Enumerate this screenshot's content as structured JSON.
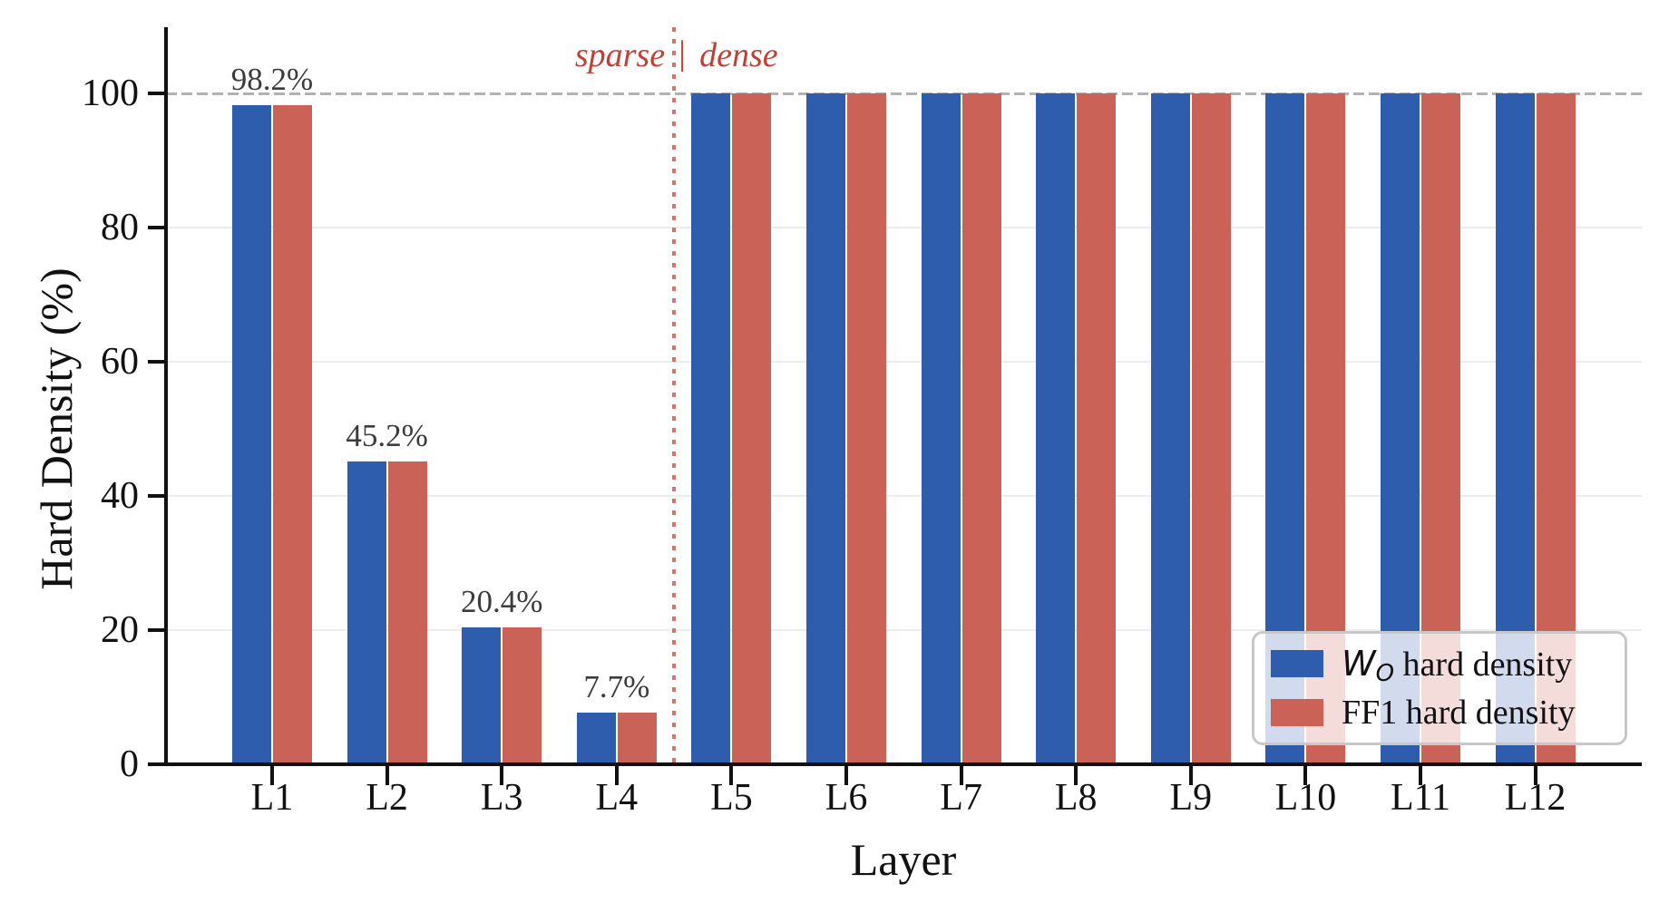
{
  "chart_data": {
    "type": "bar",
    "title": "",
    "xlabel": "Layer",
    "ylabel": "Hard Density (%)",
    "categories": [
      "L1",
      "L2",
      "L3",
      "L4",
      "L5",
      "L6",
      "L7",
      "L8",
      "L9",
      "L10",
      "L11",
      "L12"
    ],
    "series": [
      {
        "name": "WO hard density",
        "name_main": "W",
        "name_sub": "O",
        "name_rest": " hard density",
        "color": "#2e5dad",
        "values": [
          98.2,
          45.2,
          20.4,
          7.7,
          100,
          100,
          100,
          100,
          100,
          100,
          100,
          100
        ]
      },
      {
        "name": "FF1 hard density",
        "color": "#cb6257",
        "values": [
          98.2,
          45.2,
          20.4,
          7.7,
          100,
          100,
          100,
          100,
          100,
          100,
          100,
          100
        ]
      }
    ],
    "bar_labels": [
      "98.2%",
      "45.2%",
      "20.4%",
      "7.7%",
      "",
      "",
      "",
      "",
      "",
      "",
      "",
      ""
    ],
    "bar_label_color": "#3c3c3c",
    "yticks": [
      0,
      20,
      40,
      60,
      80,
      100
    ],
    "ylim": [
      0,
      110
    ],
    "grid": "horizontal",
    "gridline_color": "#ededed",
    "reference_line": {
      "value": 100,
      "style": "dashed",
      "color": "#b2b2b2"
    },
    "divider": {
      "after_category": "L4",
      "left_label": "sparse",
      "separator": "|",
      "right_label": "dense",
      "style": "dotted",
      "line_color": "#d1776c",
      "text_color": "#bf4136"
    },
    "legend": {
      "position": "lower right"
    }
  }
}
